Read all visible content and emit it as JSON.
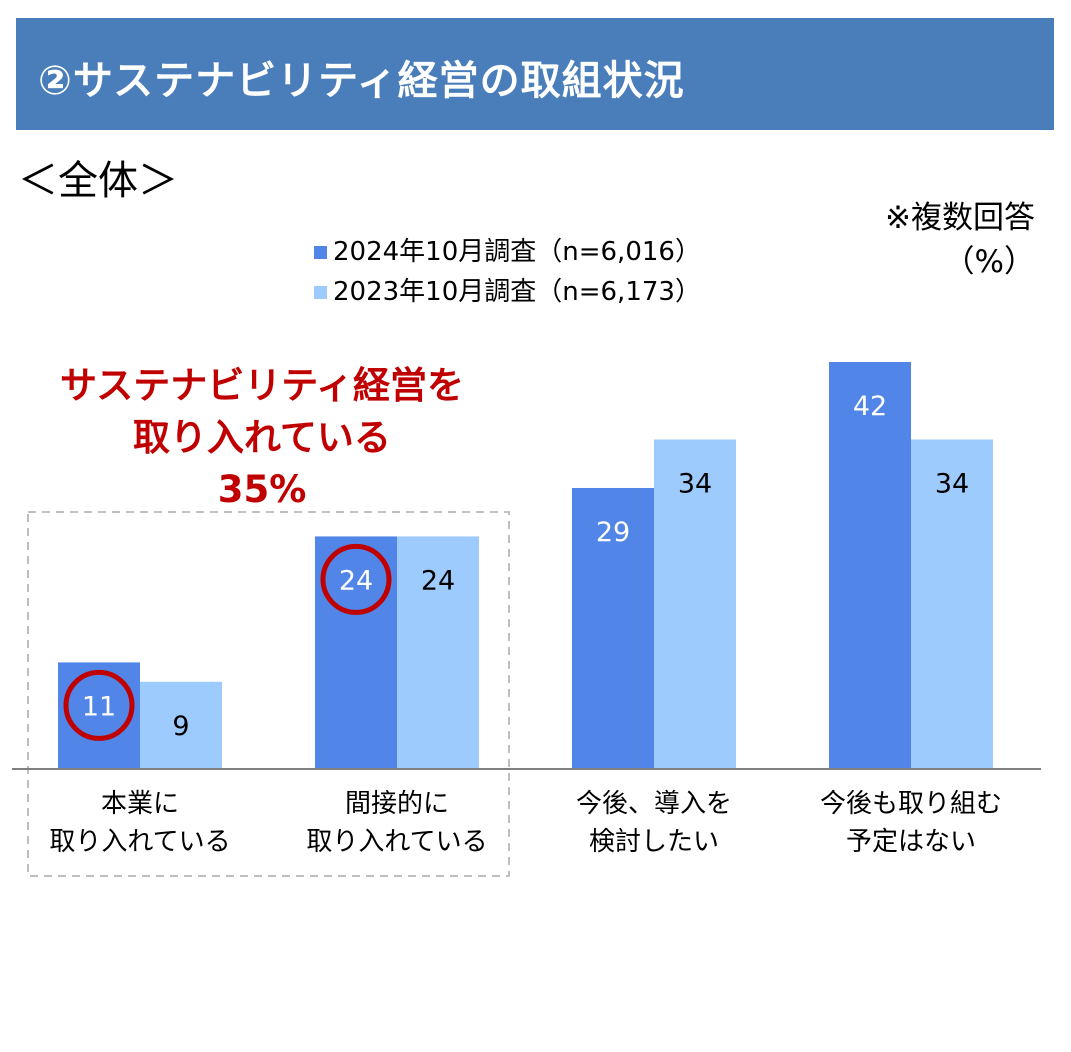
{
  "header": {
    "title": "②サステナビリティ経営の取組状況"
  },
  "subtitle": "＜全体＞",
  "note": {
    "line1": "※複数回答",
    "line2": "（%）"
  },
  "callout": {
    "line1": "サステナビリティ経営を",
    "line2": "取り入れている",
    "line3": "35%"
  },
  "colors": {
    "header_bg": "#4a7ebb",
    "series_2024": "#5186e8",
    "series_2023": "#9dcbfd",
    "callout": "#c00000"
  },
  "chart_data": {
    "type": "bar",
    "categories": [
      [
        "本業に",
        "取り入れている"
      ],
      [
        "間接的に",
        "取り入れている"
      ],
      [
        "今後、導入を",
        "検討したい"
      ],
      [
        "今後も取り組む",
        "予定はない"
      ]
    ],
    "series": [
      {
        "name": "2024年10月調査（n=6,016）",
        "values": [
          11,
          24,
          29,
          42
        ]
      },
      {
        "name": "2023年10月調査（n=6,173）",
        "values": [
          9,
          24,
          34,
          34
        ]
      }
    ],
    "ylim": [
      0,
      42
    ],
    "circled": [
      {
        "series": 0,
        "index": 0
      },
      {
        "series": 0,
        "index": 1
      }
    ],
    "group_box": [
      0,
      1
    ]
  }
}
